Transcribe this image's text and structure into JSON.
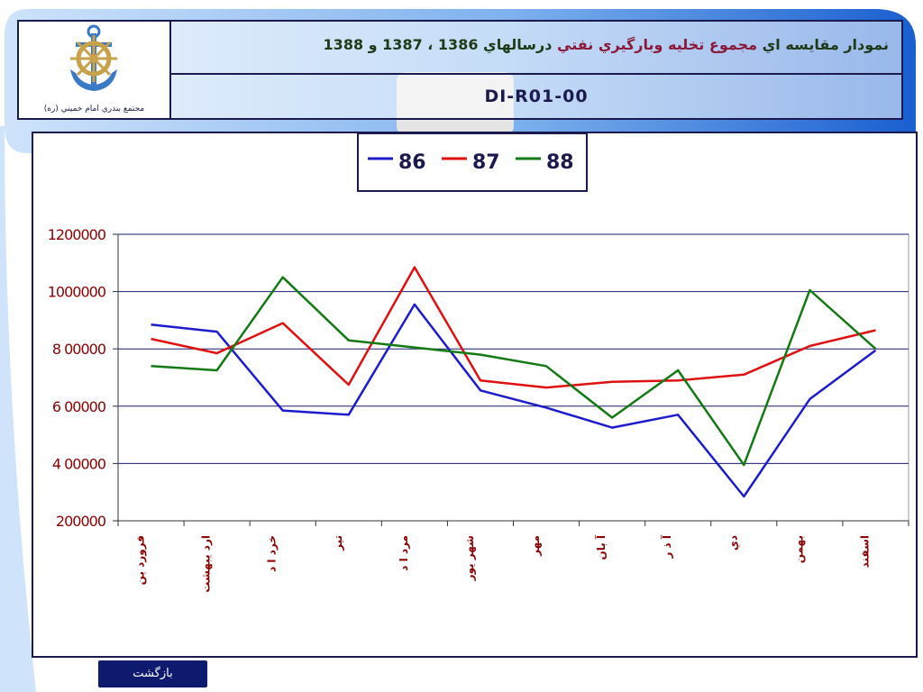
{
  "header": {
    "title_prefix": "نمودار مقایسه اي",
    "title_accent": "مجموع تخليه وبارگيري نفتي",
    "title_suffix": "درسالهاي 1386 ، 1387 و 1388",
    "code": "DI-R01-00",
    "logo_caption": "مجتمع بندري امام خميني (ره)"
  },
  "footer": {
    "back_label": "بازگشت"
  },
  "colors": {
    "series_86": "#1c1ccc",
    "series_87": "#e01010",
    "series_88": "#137a13",
    "frame": "#1a1a4e",
    "axis_text": "#8b0000"
  },
  "chart_data": {
    "type": "line",
    "categories": [
      "فروردين",
      "ارديبهشت",
      "خرداد",
      "تير",
      "مرداد",
      "شهريور",
      "مهر",
      "آبان",
      "آذر",
      "دي",
      "بهمن",
      "اسفند"
    ],
    "category_display": [
      "فرورد ين",
      "ارد يبهشت",
      "خرد ا د",
      "تير",
      "مرد ا د",
      "شهر يور",
      "مهر",
      "آ بان",
      "آ ذ ر",
      "دي",
      "بهمن",
      "اسفند"
    ],
    "series": [
      {
        "name": "86",
        "values": [
          885000,
          860000,
          585000,
          570000,
          955000,
          655000,
          595000,
          525000,
          570000,
          285000,
          625000,
          795000
        ]
      },
      {
        "name": "87",
        "values": [
          835000,
          785000,
          890000,
          675000,
          1085000,
          690000,
          665000,
          685000,
          690000,
          710000,
          810000,
          865000
        ]
      },
      {
        "name": "88",
        "values": [
          740000,
          725000,
          1050000,
          830000,
          805000,
          780000,
          740000,
          560000,
          725000,
          395000,
          1005000,
          800000
        ]
      }
    ],
    "yticks": [
      200000,
      400000,
      600000,
      800000,
      1000000,
      1200000
    ],
    "ytick_labels": [
      "200000",
      "4 00000",
      "6 00000",
      "8 00000",
      "1000000",
      "1200000"
    ],
    "ylim": [
      200000,
      1200000
    ],
    "grid": true,
    "legend": "top-center"
  }
}
